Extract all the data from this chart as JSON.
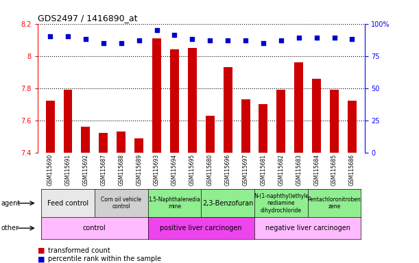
{
  "title": "GDS2497 / 1416890_at",
  "samples": [
    "GSM115690",
    "GSM115691",
    "GSM115692",
    "GSM115687",
    "GSM115688",
    "GSM115689",
    "GSM115693",
    "GSM115694",
    "GSM115695",
    "GSM115680",
    "GSM115696",
    "GSM115697",
    "GSM115681",
    "GSM115682",
    "GSM115683",
    "GSM115684",
    "GSM115685",
    "GSM115686"
  ],
  "transformed_count": [
    7.72,
    7.79,
    7.56,
    7.52,
    7.53,
    7.49,
    8.11,
    8.04,
    8.05,
    7.63,
    7.93,
    7.73,
    7.7,
    7.79,
    7.96,
    7.86,
    7.79,
    7.72
  ],
  "percentile": [
    90,
    90,
    88,
    85,
    85,
    87,
    95,
    91,
    88,
    87,
    87,
    87,
    85,
    87,
    89,
    89,
    89,
    88
  ],
  "ylim": [
    7.4,
    8.2
  ],
  "yticks": [
    7.4,
    7.6,
    7.8,
    8.0,
    8.2
  ],
  "ytick_labels": [
    "7.4",
    "7.6",
    "7.8",
    "8",
    "8.2"
  ],
  "right_yticks": [
    0,
    25,
    50,
    75,
    100
  ],
  "right_ytick_labels": [
    "0",
    "25",
    "50",
    "75",
    "100%"
  ],
  "right_ylim": [
    0,
    100
  ],
  "bar_color": "#cc0000",
  "dot_color": "#0000cc",
  "bg_color": "#ffffff",
  "grid_color": "#000000",
  "agent_groups": [
    {
      "label": "Feed control",
      "start": 0,
      "end": 3,
      "color": "#e8e8e8",
      "small": false
    },
    {
      "label": "Corn oil vehicle\ncontrol",
      "start": 3,
      "end": 6,
      "color": "#d0d0d0",
      "small": true
    },
    {
      "label": "1,5-Naphthalenedia\nmine",
      "start": 6,
      "end": 9,
      "color": "#90ee90",
      "small": true
    },
    {
      "label": "2,3-Benzofuran",
      "start": 9,
      "end": 12,
      "color": "#90ee90",
      "small": false
    },
    {
      "label": "N-(1-naphthyl)ethyle\nnediamine\ndihydrochloride",
      "start": 12,
      "end": 15,
      "color": "#90ee90",
      "small": true
    },
    {
      "label": "Pentachloronitroben\nzene",
      "start": 15,
      "end": 18,
      "color": "#90ee90",
      "small": true
    }
  ],
  "other_groups": [
    {
      "label": "control",
      "start": 0,
      "end": 6,
      "color": "#ffbbff"
    },
    {
      "label": "positive liver carcinogen",
      "start": 6,
      "end": 12,
      "color": "#ee44ee"
    },
    {
      "label": "negative liver carcinogen",
      "start": 12,
      "end": 18,
      "color": "#ffbbff"
    }
  ],
  "legend_items": [
    {
      "color": "#cc0000",
      "label": "transformed count"
    },
    {
      "color": "#0000cc",
      "label": "percentile rank within the sample"
    }
  ]
}
